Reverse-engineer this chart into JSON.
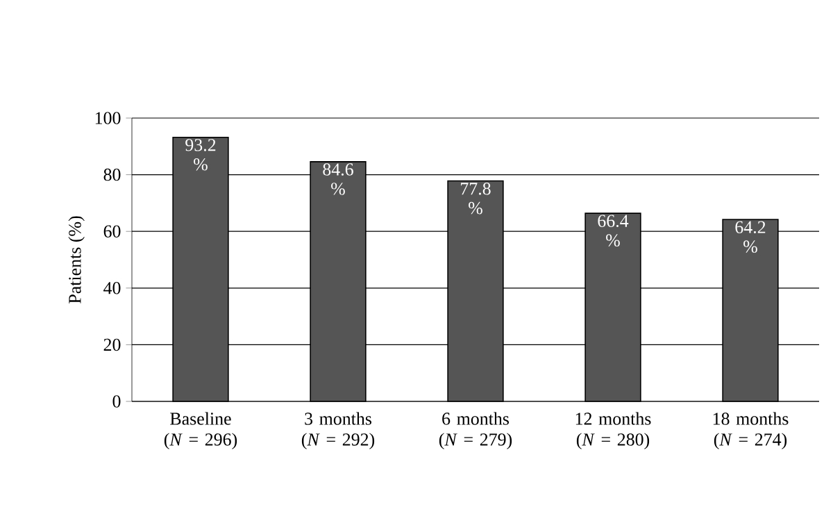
{
  "chart_data": {
    "type": "bar",
    "ylabel": "Patients (%)",
    "categories": [
      "Baseline (*N* = 296)",
      "3 months (*N* = 292)",
      "6 months (*N* = 279)",
      "12 months (*N* = 280)",
      "18 months (*N* = 274)"
    ],
    "values": [
      93.2,
      84.6,
      77.8,
      66.4,
      64.2
    ],
    "value_labels": [
      "93.2 %",
      "84.6 %",
      "77.8 %",
      "66.4 %",
      "64.2 %"
    ],
    "color": "#555555",
    "ylim": [
      0,
      100
    ],
    "yticks": [
      0,
      20,
      40,
      60,
      80,
      100
    ],
    "grid": "y"
  }
}
